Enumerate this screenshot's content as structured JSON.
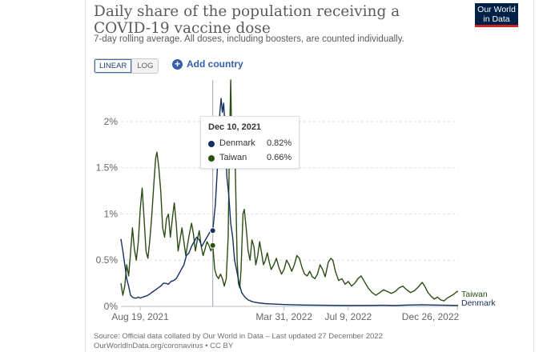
{
  "header": {
    "title": "Daily share of the population receiving a COVID-19 vaccine dose",
    "subtitle": "7-day rolling average. All doses, including boosters, are counted individually.",
    "logo_line1": "Our World",
    "logo_line2": "in Data"
  },
  "controls": {
    "scale_linear": "LINEAR",
    "scale_log": "LOG",
    "active_scale": "LINEAR",
    "add_country": "Add country"
  },
  "tooltip": {
    "date": "Dec 10, 2021",
    "rows": [
      {
        "name": "Denmark",
        "value": "0.82%",
        "color": "#15305e"
      },
      {
        "name": "Taiwan",
        "value": "0.66%",
        "color": "#2a4d14"
      }
    ]
  },
  "footer": {
    "source": "Source: Official data collated by Our World in Data – Last updated 27 December 2022",
    "url": "OurWorldInData.org/coronavirus • CC BY"
  },
  "chart_data": {
    "type": "line",
    "x_unit": "date",
    "xlim": [
      "2021-07-20",
      "2022-12-27"
    ],
    "ylim": [
      0,
      2.45
    ],
    "y_ticks": [
      0,
      0.5,
      1,
      1.5,
      2
    ],
    "y_tick_labels": [
      "0%",
      "0.5%",
      "1%",
      "1.5%",
      "2%"
    ],
    "x_ticks": [
      "2021-08-19",
      "2022-03-31",
      "2022-07-09",
      "2022-12-26"
    ],
    "x_tick_labels": [
      "Aug 19, 2021",
      "Mar 31, 2022",
      "Jul 9, 2022",
      "Dec 26, 2022"
    ],
    "grid": "horizontal dashed",
    "hover_date": "2021-12-10",
    "series": [
      {
        "name": "Taiwan",
        "color": "#2a4d14",
        "points": [
          [
            "2021-07-20",
            0.25
          ],
          [
            "2021-07-23",
            0.12
          ],
          [
            "2021-07-26",
            0.22
          ],
          [
            "2021-07-29",
            0.45
          ],
          [
            "2021-08-01",
            0.33
          ],
          [
            "2021-08-04",
            0.58
          ],
          [
            "2021-08-07",
            0.85
          ],
          [
            "2021-08-10",
            0.62
          ],
          [
            "2021-08-13",
            0.5
          ],
          [
            "2021-08-16",
            0.7
          ],
          [
            "2021-08-19",
            1.05
          ],
          [
            "2021-08-22",
            1.28
          ],
          [
            "2021-08-25",
            0.95
          ],
          [
            "2021-08-28",
            0.6
          ],
          [
            "2021-08-31",
            0.52
          ],
          [
            "2021-09-03",
            0.72
          ],
          [
            "2021-09-06",
            0.98
          ],
          [
            "2021-09-09",
            1.3
          ],
          [
            "2021-09-12",
            1.6
          ],
          [
            "2021-09-14",
            1.67
          ],
          [
            "2021-09-17",
            1.5
          ],
          [
            "2021-09-20",
            1.25
          ],
          [
            "2021-09-23",
            0.85
          ],
          [
            "2021-09-26",
            0.75
          ],
          [
            "2021-09-29",
            0.95
          ],
          [
            "2021-10-02",
            1.0
          ],
          [
            "2021-10-05",
            0.75
          ],
          [
            "2021-10-08",
            0.95
          ],
          [
            "2021-10-11",
            1.12
          ],
          [
            "2021-10-14",
            0.9
          ],
          [
            "2021-10-17",
            0.6
          ],
          [
            "2021-10-20",
            0.72
          ],
          [
            "2021-10-23",
            0.85
          ],
          [
            "2021-10-26",
            0.7
          ],
          [
            "2021-10-29",
            0.55
          ],
          [
            "2021-11-01",
            0.68
          ],
          [
            "2021-11-04",
            0.8
          ],
          [
            "2021-11-07",
            0.9
          ],
          [
            "2021-11-10",
            0.78
          ],
          [
            "2021-11-13",
            0.6
          ],
          [
            "2021-11-16",
            0.72
          ],
          [
            "2021-11-19",
            0.82
          ],
          [
            "2021-11-22",
            0.65
          ],
          [
            "2021-11-25",
            0.55
          ],
          [
            "2021-11-28",
            0.62
          ],
          [
            "2021-12-01",
            0.7
          ],
          [
            "2021-12-04",
            0.66
          ],
          [
            "2021-12-07",
            0.6
          ],
          [
            "2021-12-10",
            0.66
          ],
          [
            "2021-12-13",
            0.4
          ],
          [
            "2021-12-16",
            0.33
          ],
          [
            "2021-12-19",
            0.3
          ],
          [
            "2021-12-22",
            0.35
          ],
          [
            "2021-12-25",
            0.3
          ],
          [
            "2021-12-28",
            0.22
          ],
          [
            "2021-12-31",
            0.3
          ],
          [
            "2022-01-03",
            0.75
          ],
          [
            "2022-01-05",
            1.75
          ],
          [
            "2022-01-07",
            2.45
          ],
          [
            "2022-01-09",
            1.6
          ],
          [
            "2022-01-11",
            2.05
          ],
          [
            "2022-01-13",
            1.9
          ],
          [
            "2022-01-15",
            1.2
          ],
          [
            "2022-01-17",
            0.5
          ],
          [
            "2022-01-19",
            0.25
          ],
          [
            "2022-01-21",
            0.2
          ],
          [
            "2022-01-23",
            0.4
          ],
          [
            "2022-01-26",
            1.0
          ],
          [
            "2022-01-28",
            1.05
          ],
          [
            "2022-01-31",
            0.85
          ],
          [
            "2022-02-03",
            0.6
          ],
          [
            "2022-02-06",
            0.5
          ],
          [
            "2022-02-09",
            0.72
          ],
          [
            "2022-02-12",
            0.65
          ],
          [
            "2022-02-15",
            0.45
          ],
          [
            "2022-02-18",
            0.55
          ],
          [
            "2022-02-21",
            0.7
          ],
          [
            "2022-02-24",
            0.58
          ],
          [
            "2022-02-27",
            0.45
          ],
          [
            "2022-03-02",
            0.5
          ],
          [
            "2022-03-05",
            0.58
          ],
          [
            "2022-03-08",
            0.48
          ],
          [
            "2022-03-11",
            0.4
          ],
          [
            "2022-03-15",
            0.45
          ],
          [
            "2022-03-19",
            0.52
          ],
          [
            "2022-03-23",
            0.42
          ],
          [
            "2022-03-27",
            0.35
          ],
          [
            "2022-03-31",
            0.4
          ],
          [
            "2022-04-04",
            0.5
          ],
          [
            "2022-04-08",
            0.45
          ],
          [
            "2022-04-12",
            0.38
          ],
          [
            "2022-04-16",
            0.45
          ],
          [
            "2022-04-20",
            0.55
          ],
          [
            "2022-04-24",
            0.52
          ],
          [
            "2022-04-28",
            0.42
          ],
          [
            "2022-05-02",
            0.35
          ],
          [
            "2022-05-06",
            0.33
          ],
          [
            "2022-05-10",
            0.38
          ],
          [
            "2022-05-14",
            0.32
          ],
          [
            "2022-05-18",
            0.3
          ],
          [
            "2022-05-22",
            0.35
          ],
          [
            "2022-05-26",
            0.45
          ],
          [
            "2022-05-30",
            0.4
          ],
          [
            "2022-06-03",
            0.32
          ],
          [
            "2022-06-08",
            0.48
          ],
          [
            "2022-06-12",
            0.52
          ],
          [
            "2022-06-15",
            0.5
          ],
          [
            "2022-06-19",
            0.38
          ],
          [
            "2022-06-24",
            0.28
          ],
          [
            "2022-06-29",
            0.3
          ],
          [
            "2022-07-04",
            0.24
          ],
          [
            "2022-07-09",
            0.27
          ],
          [
            "2022-07-14",
            0.22
          ],
          [
            "2022-07-19",
            0.25
          ],
          [
            "2022-07-24",
            0.3
          ],
          [
            "2022-07-29",
            0.33
          ],
          [
            "2022-08-03",
            0.27
          ],
          [
            "2022-08-09",
            0.2
          ],
          [
            "2022-08-15",
            0.15
          ],
          [
            "2022-08-21",
            0.12
          ],
          [
            "2022-08-27",
            0.15
          ],
          [
            "2022-09-02",
            0.18
          ],
          [
            "2022-09-08",
            0.16
          ],
          [
            "2022-09-14",
            0.14
          ],
          [
            "2022-09-20",
            0.16
          ],
          [
            "2022-09-26",
            0.2
          ],
          [
            "2022-10-02",
            0.22
          ],
          [
            "2022-10-08",
            0.18
          ],
          [
            "2022-10-14",
            0.15
          ],
          [
            "2022-10-20",
            0.17
          ],
          [
            "2022-10-26",
            0.21
          ],
          [
            "2022-11-01",
            0.26
          ],
          [
            "2022-11-05",
            0.22
          ],
          [
            "2022-11-10",
            0.15
          ],
          [
            "2022-11-15",
            0.11
          ],
          [
            "2022-11-20",
            0.08
          ],
          [
            "2022-11-25",
            0.1
          ],
          [
            "2022-11-30",
            0.07
          ],
          [
            "2022-12-05",
            0.06
          ],
          [
            "2022-12-10",
            0.09
          ],
          [
            "2022-12-15",
            0.11
          ],
          [
            "2022-12-20",
            0.13
          ],
          [
            "2022-12-25",
            0.16
          ],
          [
            "2022-12-27",
            0.16
          ]
        ]
      },
      {
        "name": "Denmark",
        "color": "#15305e",
        "points": [
          [
            "2021-07-20",
            0.73
          ],
          [
            "2021-07-23",
            0.6
          ],
          [
            "2021-07-26",
            0.45
          ],
          [
            "2021-07-29",
            0.3
          ],
          [
            "2021-08-01",
            0.22
          ],
          [
            "2021-08-04",
            0.12
          ],
          [
            "2021-08-07",
            0.1
          ],
          [
            "2021-08-10",
            0.09
          ],
          [
            "2021-08-13",
            0.09
          ],
          [
            "2021-08-16",
            0.1
          ],
          [
            "2021-08-19",
            0.09
          ],
          [
            "2021-08-23",
            0.1
          ],
          [
            "2021-08-27",
            0.11
          ],
          [
            "2021-08-31",
            0.12
          ],
          [
            "2021-09-04",
            0.14
          ],
          [
            "2021-09-08",
            0.16
          ],
          [
            "2021-09-12",
            0.18
          ],
          [
            "2021-09-16",
            0.2
          ],
          [
            "2021-09-20",
            0.22
          ],
          [
            "2021-09-24",
            0.25
          ],
          [
            "2021-09-28",
            0.25
          ],
          [
            "2021-10-02",
            0.24
          ],
          [
            "2021-10-06",
            0.27
          ],
          [
            "2021-10-10",
            0.28
          ],
          [
            "2021-10-14",
            0.3
          ],
          [
            "2021-10-18",
            0.35
          ],
          [
            "2021-10-22",
            0.4
          ],
          [
            "2021-10-26",
            0.45
          ],
          [
            "2021-10-30",
            0.55
          ],
          [
            "2021-11-03",
            0.58
          ],
          [
            "2021-11-07",
            0.65
          ],
          [
            "2021-11-11",
            0.7
          ],
          [
            "2021-11-15",
            0.75
          ],
          [
            "2021-11-19",
            0.72
          ],
          [
            "2021-11-23",
            0.65
          ],
          [
            "2021-11-27",
            0.7
          ],
          [
            "2021-12-01",
            0.75
          ],
          [
            "2021-12-05",
            0.8
          ],
          [
            "2021-12-10",
            0.82
          ],
          [
            "2021-12-14",
            1.1
          ],
          [
            "2021-12-18",
            1.6
          ],
          [
            "2021-12-21",
            2.1
          ],
          [
            "2021-12-23",
            2.25
          ],
          [
            "2021-12-25",
            2.1
          ],
          [
            "2021-12-27",
            2.2
          ],
          [
            "2021-12-29",
            1.95
          ],
          [
            "2022-01-01",
            1.4
          ],
          [
            "2022-01-04",
            1.2
          ],
          [
            "2022-01-07",
            0.9
          ],
          [
            "2022-01-10",
            0.75
          ],
          [
            "2022-01-13",
            0.5
          ],
          [
            "2022-01-16",
            0.4
          ],
          [
            "2022-01-20",
            0.25
          ],
          [
            "2022-01-24",
            0.15
          ],
          [
            "2022-01-29",
            0.1
          ],
          [
            "2022-02-03",
            0.07
          ],
          [
            "2022-02-10",
            0.05
          ],
          [
            "2022-02-18",
            0.04
          ],
          [
            "2022-03-01",
            0.03
          ],
          [
            "2022-03-15",
            0.025
          ],
          [
            "2022-04-01",
            0.02
          ],
          [
            "2022-05-01",
            0.015
          ],
          [
            "2022-06-01",
            0.012
          ],
          [
            "2022-07-01",
            0.01
          ],
          [
            "2022-08-01",
            0.01
          ],
          [
            "2022-09-01",
            0.012
          ],
          [
            "2022-09-20",
            0.01
          ],
          [
            "2022-10-10",
            0.015
          ],
          [
            "2022-11-01",
            0.018
          ],
          [
            "2022-11-20",
            0.015
          ],
          [
            "2022-12-10",
            0.012
          ],
          [
            "2022-12-27",
            0.01
          ]
        ]
      }
    ]
  }
}
